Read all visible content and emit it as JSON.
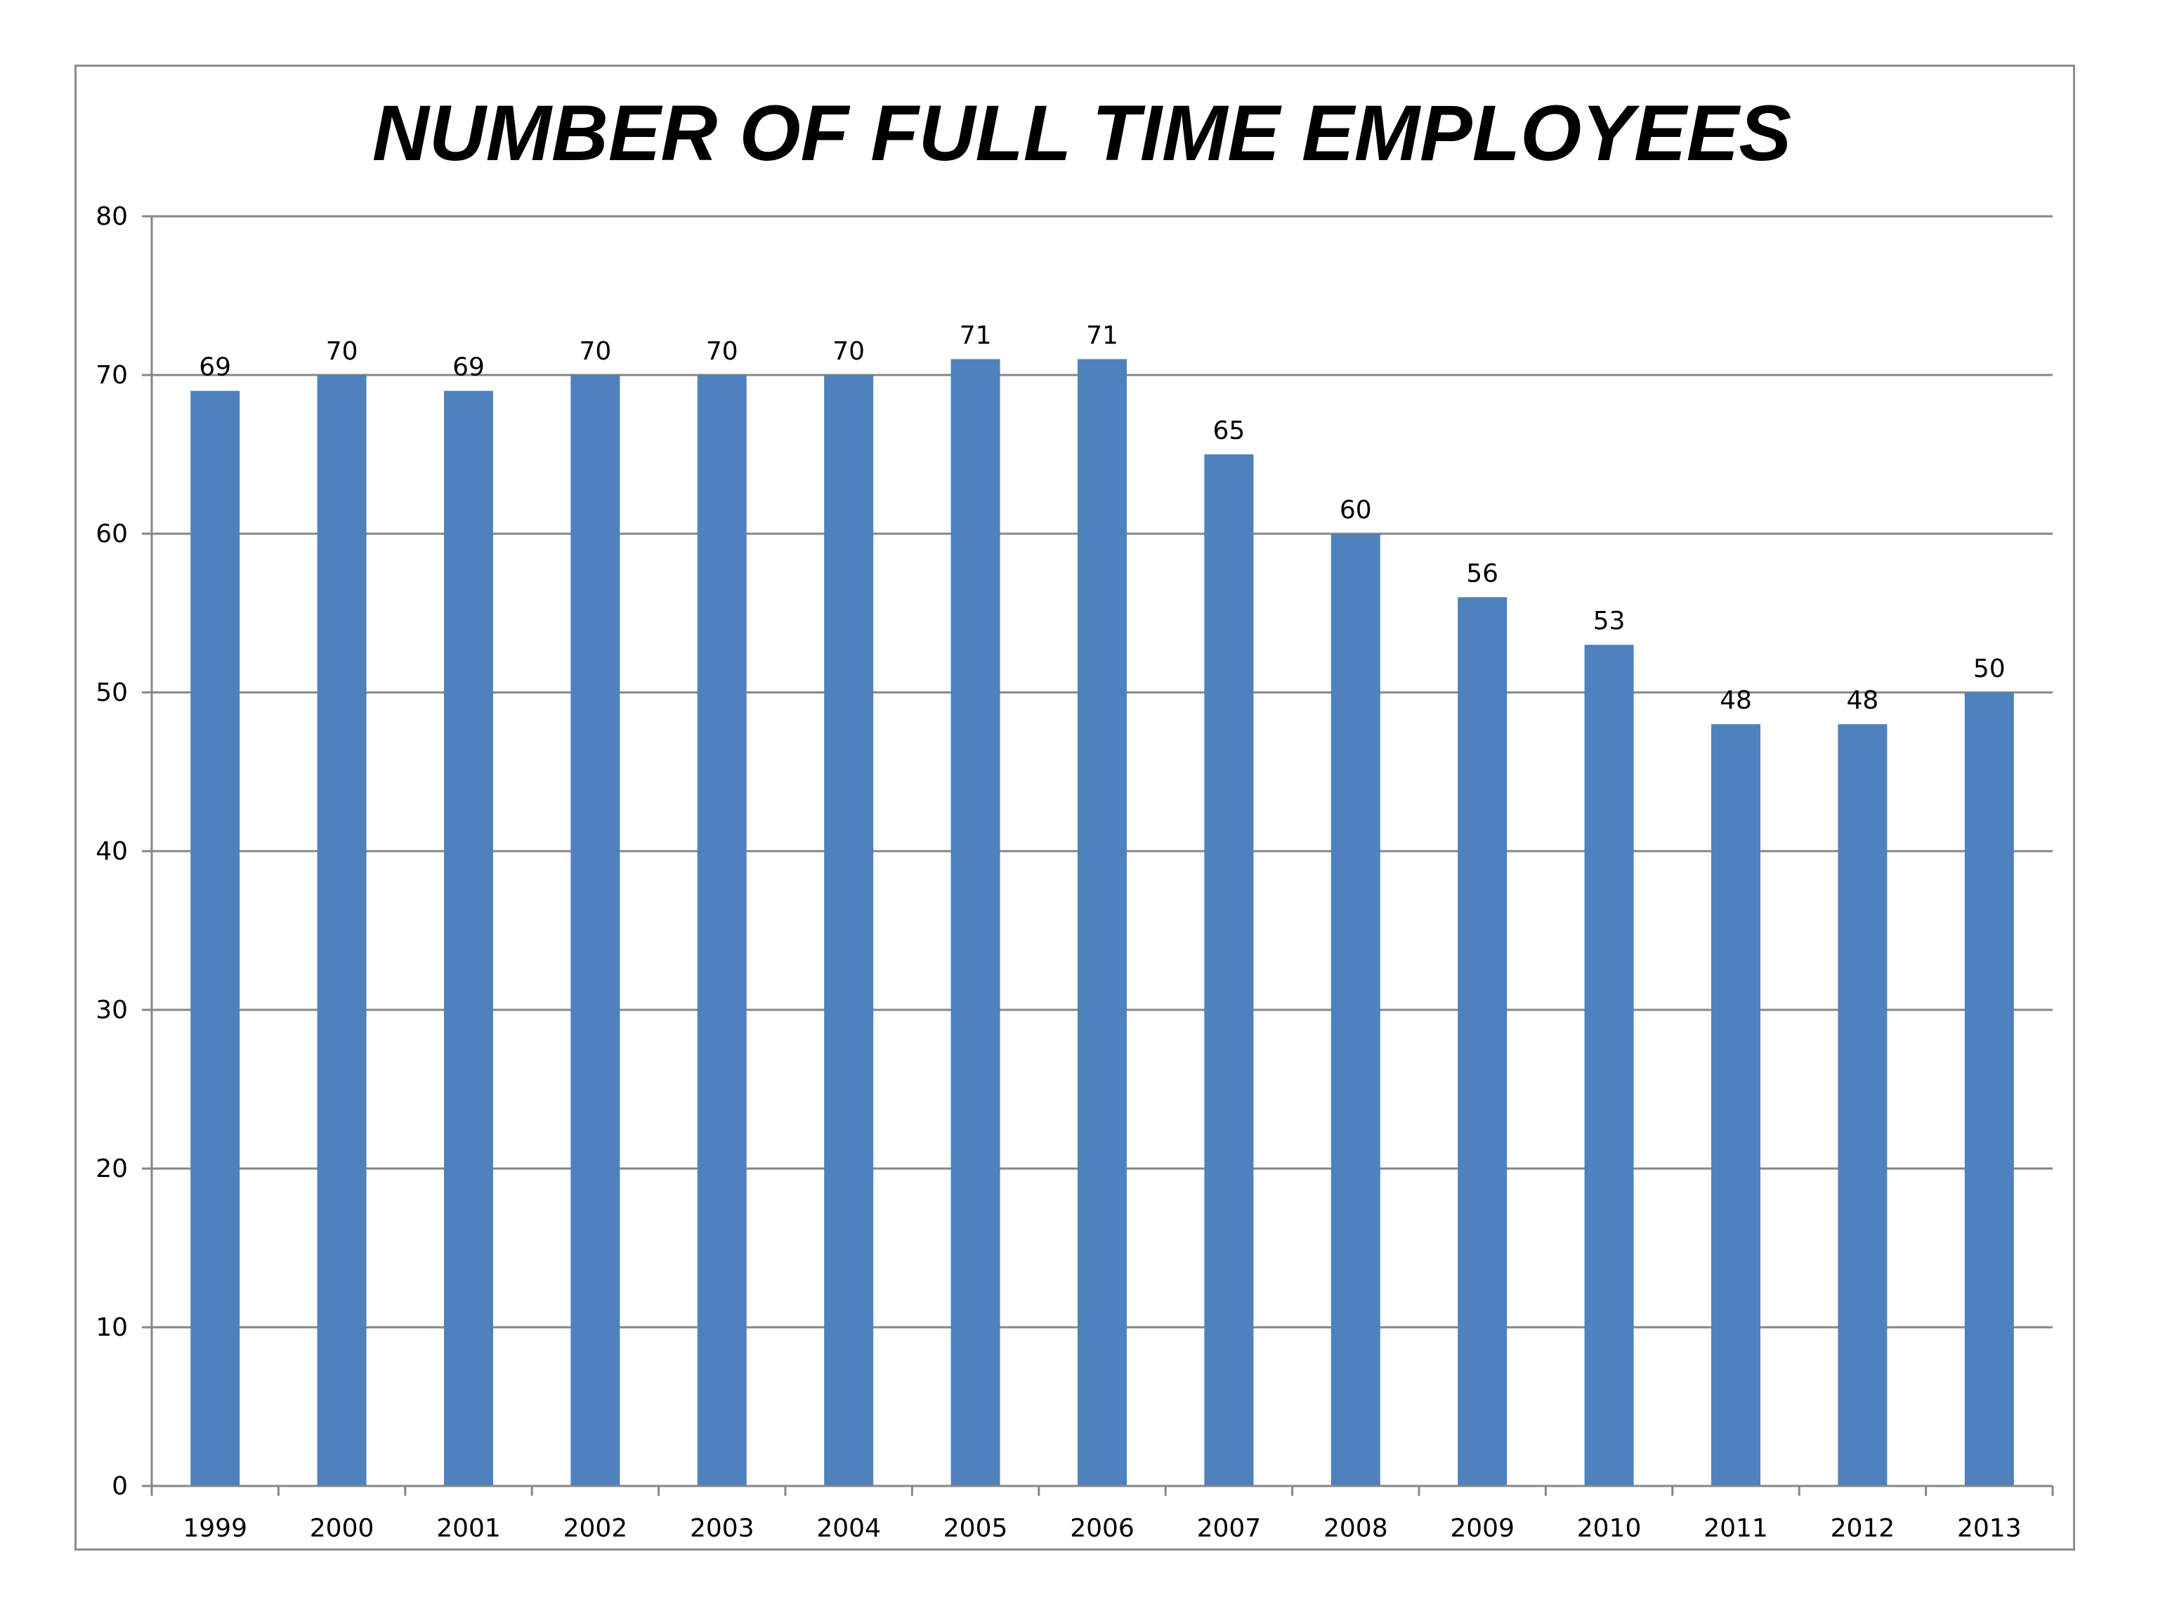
{
  "chart_data": {
    "type": "bar",
    "title": "NUMBER OF FULL TIME EMPLOYEES",
    "xlabel": "",
    "ylabel": "",
    "categories": [
      "1999",
      "2000",
      "2001",
      "2002",
      "2003",
      "2004",
      "2005",
      "2006",
      "2007",
      "2008",
      "2009",
      "2010",
      "2011",
      "2012",
      "2013"
    ],
    "values": [
      69,
      70,
      69,
      70,
      70,
      70,
      71,
      71,
      65,
      60,
      56,
      53,
      48,
      48,
      50
    ],
    "ylim": [
      0,
      80
    ],
    "yticks": [
      0,
      10,
      20,
      30,
      40,
      50,
      60,
      70,
      80
    ],
    "grid": true,
    "legend": "none",
    "data_labels": true,
    "colors": {
      "bar": "#4f81bd",
      "grid": "#868686",
      "axis": "#868686",
      "frame": "#8c8c8c"
    }
  }
}
